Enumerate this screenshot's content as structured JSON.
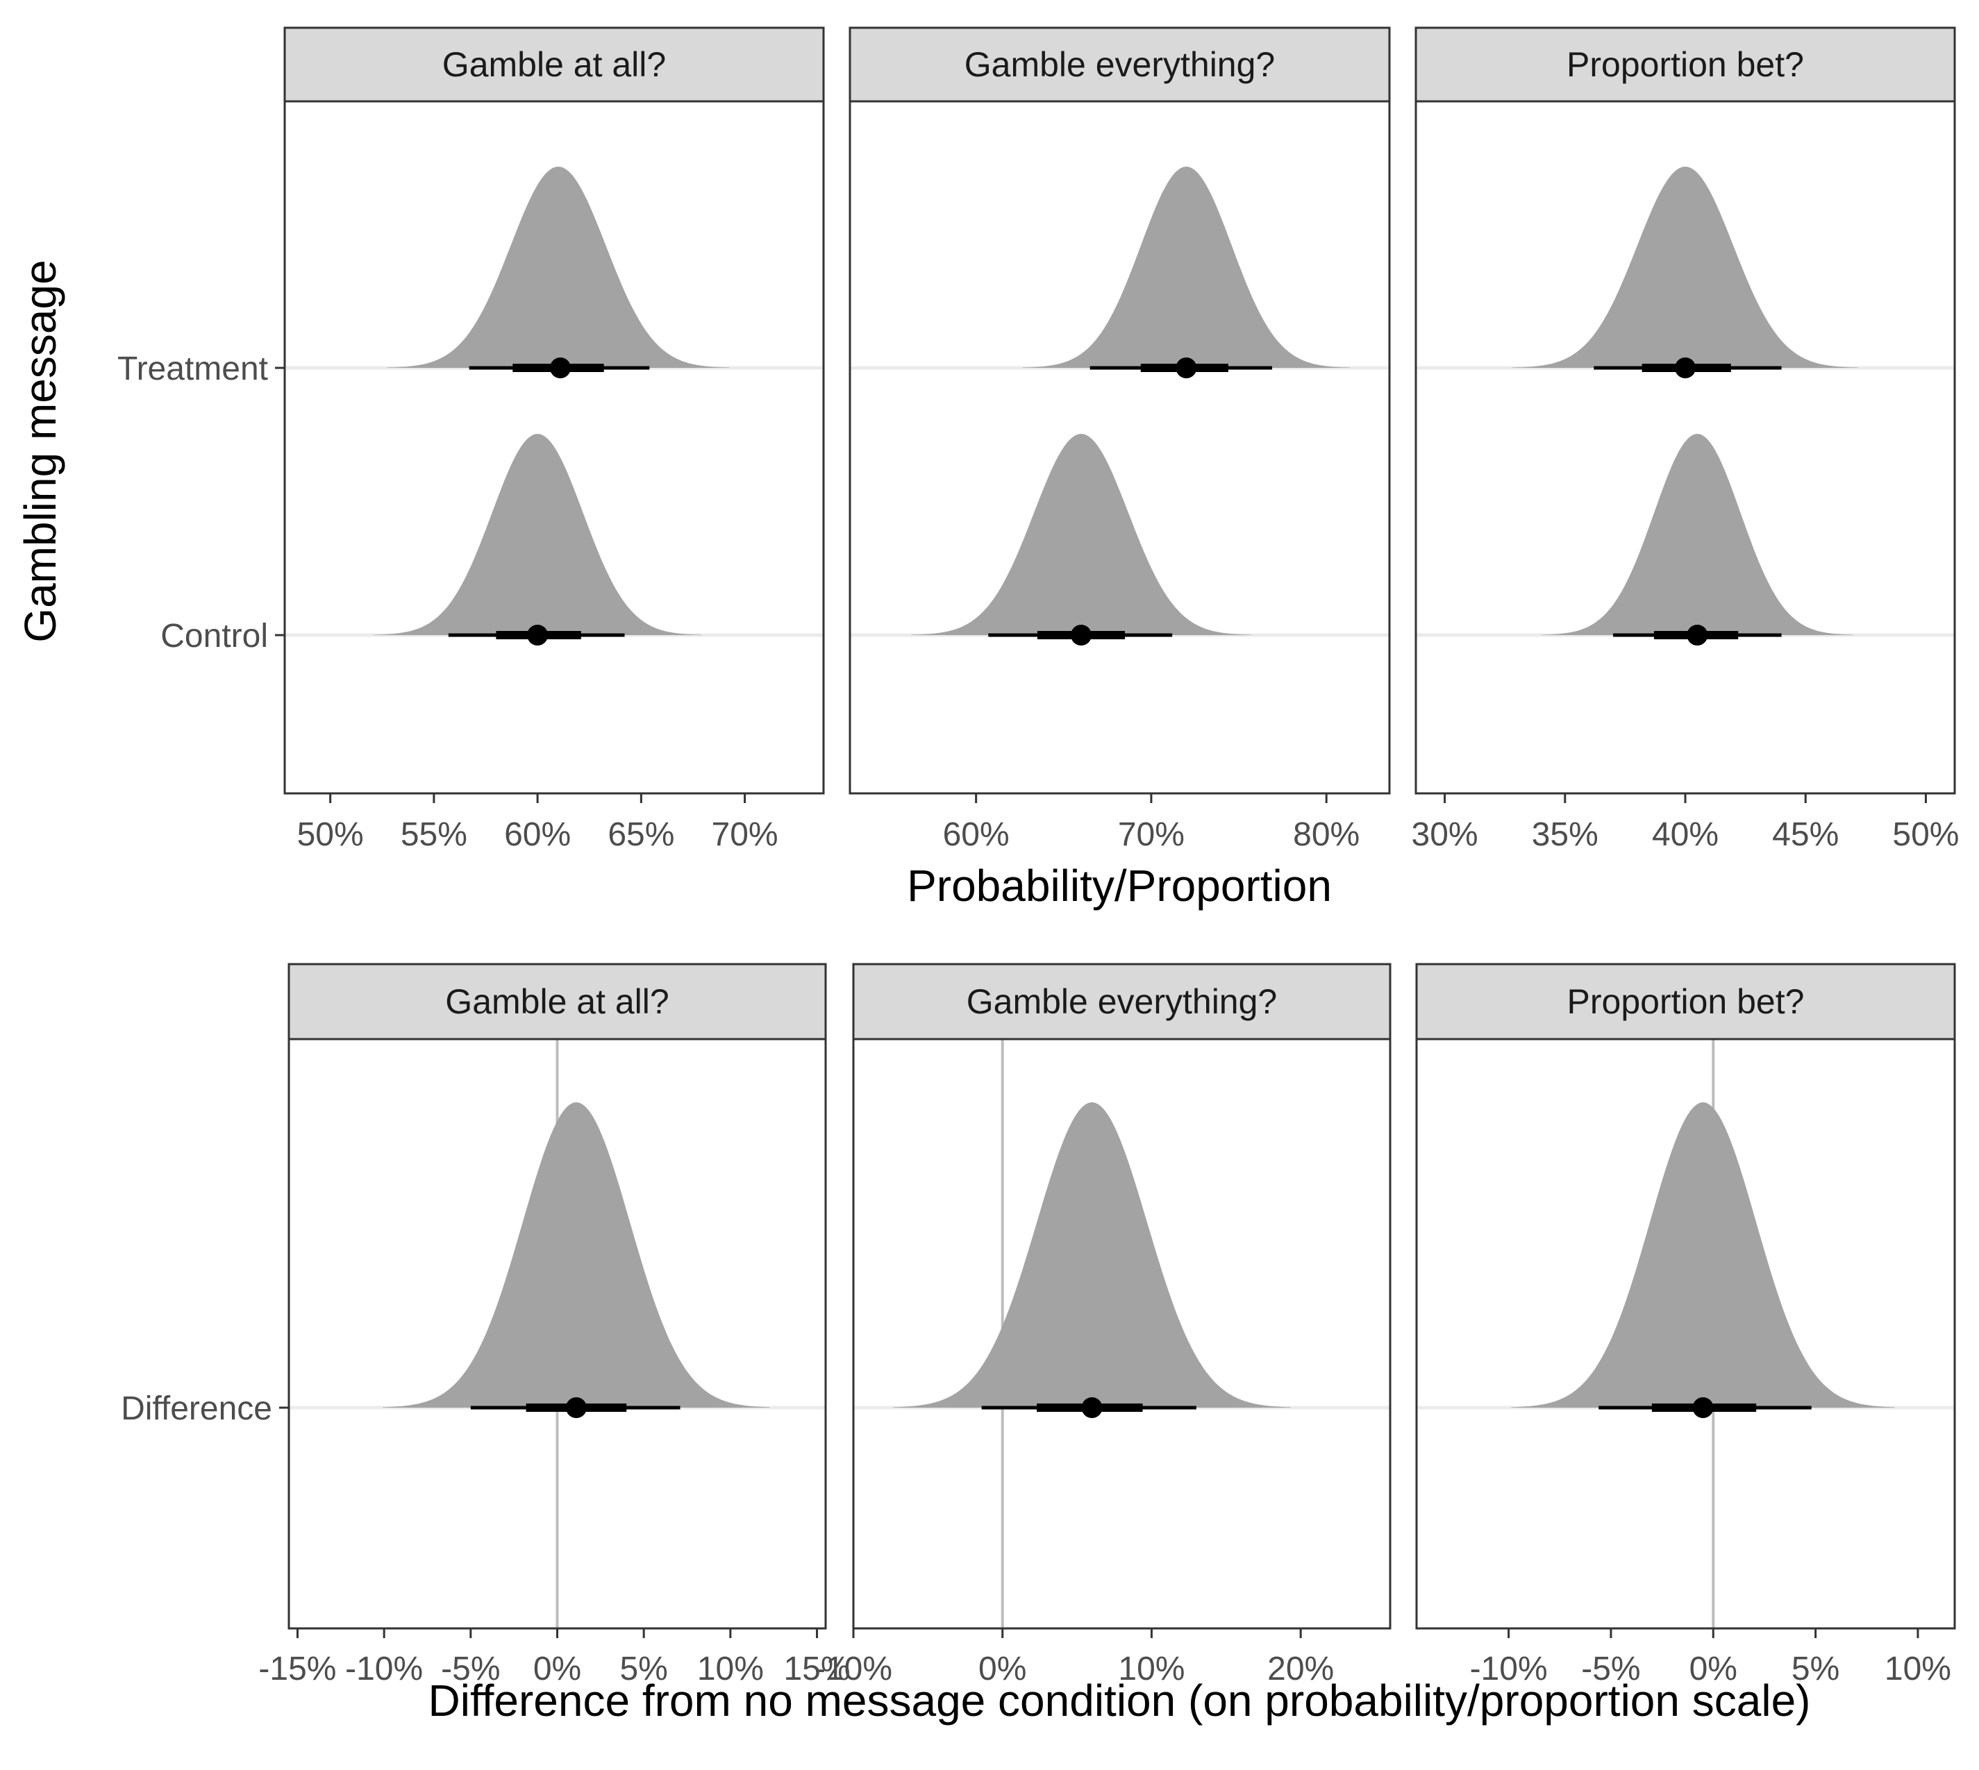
{
  "y_axis_title": "Gambling message",
  "top_x_axis_title": "Probability/Proportion",
  "bottom_x_axis_title": "Difference from no message condition (on probability/proportion scale)",
  "colors": {
    "density": "#a3a3a3",
    "strip": "#d9d9d9",
    "interval": "#000000",
    "zero_line": "#bdbdbd",
    "row_line": "#ebebeb"
  },
  "chart_data": [
    {
      "type": "halfeye",
      "row": 0,
      "col": 0,
      "title": "Gamble at all?",
      "xlim": [
        0.478,
        0.738
      ],
      "xticks": [
        0.5,
        0.55,
        0.6,
        0.65,
        0.7
      ],
      "xtick_labels": [
        "50%",
        "55%",
        "60%",
        "65%",
        "70%"
      ],
      "categories": [
        "Treatment",
        "Control"
      ],
      "series": [
        {
          "category": "Treatment",
          "point": 0.611,
          "interval_66": [
            0.588,
            0.632
          ],
          "interval_95": [
            0.567,
            0.654
          ],
          "mean": 0.61,
          "sd": 0.023
        },
        {
          "category": "Control",
          "point": 0.6,
          "interval_66": [
            0.58,
            0.621
          ],
          "interval_95": [
            0.557,
            0.642
          ],
          "mean": 0.6,
          "sd": 0.022
        }
      ]
    },
    {
      "type": "halfeye",
      "row": 0,
      "col": 1,
      "title": "Gamble everything?",
      "xlim": [
        0.528,
        0.836
      ],
      "xticks": [
        0.6,
        0.7,
        0.8
      ],
      "xtick_labels": [
        "60%",
        "70%",
        "80%"
      ],
      "categories": [
        "Treatment",
        "Control"
      ],
      "series": [
        {
          "category": "Treatment",
          "point": 0.72,
          "interval_66": [
            0.694,
            0.744
          ],
          "interval_95": [
            0.665,
            0.769
          ],
          "mean": 0.72,
          "sd": 0.026
        },
        {
          "category": "Control",
          "point": 0.66,
          "interval_66": [
            0.635,
            0.685
          ],
          "interval_95": [
            0.607,
            0.712
          ],
          "mean": 0.66,
          "sd": 0.027
        }
      ]
    },
    {
      "type": "halfeye",
      "row": 0,
      "col": 2,
      "title": "Proportion bet?",
      "xlim": [
        0.288,
        0.512
      ],
      "xticks": [
        0.3,
        0.35,
        0.4,
        0.45,
        0.5
      ],
      "xtick_labels": [
        "30%",
        "35%",
        "40%",
        "45%",
        "50%"
      ],
      "categories": [
        "Treatment",
        "Control"
      ],
      "series": [
        {
          "category": "Treatment",
          "point": 0.4,
          "interval_66": [
            0.382,
            0.419
          ],
          "interval_95": [
            0.362,
            0.44
          ],
          "mean": 0.4,
          "sd": 0.02
        },
        {
          "category": "Control",
          "point": 0.405,
          "interval_66": [
            0.387,
            0.422
          ],
          "interval_95": [
            0.37,
            0.44
          ],
          "mean": 0.405,
          "sd": 0.018
        }
      ]
    },
    {
      "type": "halfeye",
      "row": 1,
      "col": 0,
      "title": "Gamble at all?",
      "xlim": [
        -0.155,
        0.155
      ],
      "xticks": [
        -0.15,
        -0.1,
        -0.05,
        0,
        0.05,
        0.1,
        0.15
      ],
      "xtick_labels": [
        "-15%",
        "-10%",
        "-5%",
        "0%",
        "5%",
        "10%",
        "15%"
      ],
      "zero_line": 0,
      "categories": [
        "Difference"
      ],
      "series": [
        {
          "category": "Difference",
          "point": 0.011,
          "interval_66": [
            -0.018,
            0.04
          ],
          "interval_95": [
            -0.05,
            0.071
          ],
          "mean": 0.011,
          "sd": 0.031
        }
      ]
    },
    {
      "type": "halfeye",
      "row": 1,
      "col": 1,
      "title": "Gamble everything?",
      "xlim": [
        -0.1,
        0.26
      ],
      "xticks": [
        -0.1,
        0,
        0.1,
        0.2
      ],
      "xtick_labels": [
        "-10%",
        "0%",
        "10%",
        "20%"
      ],
      "zero_line": 0,
      "categories": [
        "Difference"
      ],
      "series": [
        {
          "category": "Difference",
          "point": 0.06,
          "interval_66": [
            0.023,
            0.094
          ],
          "interval_95": [
            -0.014,
            0.13
          ],
          "mean": 0.06,
          "sd": 0.037
        }
      ]
    },
    {
      "type": "halfeye",
      "row": 1,
      "col": 2,
      "title": "Proportion bet?",
      "xlim": [
        -0.145,
        0.118
      ],
      "xticks": [
        -0.1,
        -0.05,
        0,
        0.05,
        0.1
      ],
      "xtick_labels": [
        "-10%",
        "-5%",
        "0%",
        "5%",
        "10%"
      ],
      "zero_line": 0,
      "categories": [
        "Difference"
      ],
      "series": [
        {
          "category": "Difference",
          "point": -0.005,
          "interval_66": [
            -0.03,
            0.021
          ],
          "interval_95": [
            -0.056,
            0.048
          ],
          "mean": -0.005,
          "sd": 0.026
        }
      ]
    }
  ]
}
